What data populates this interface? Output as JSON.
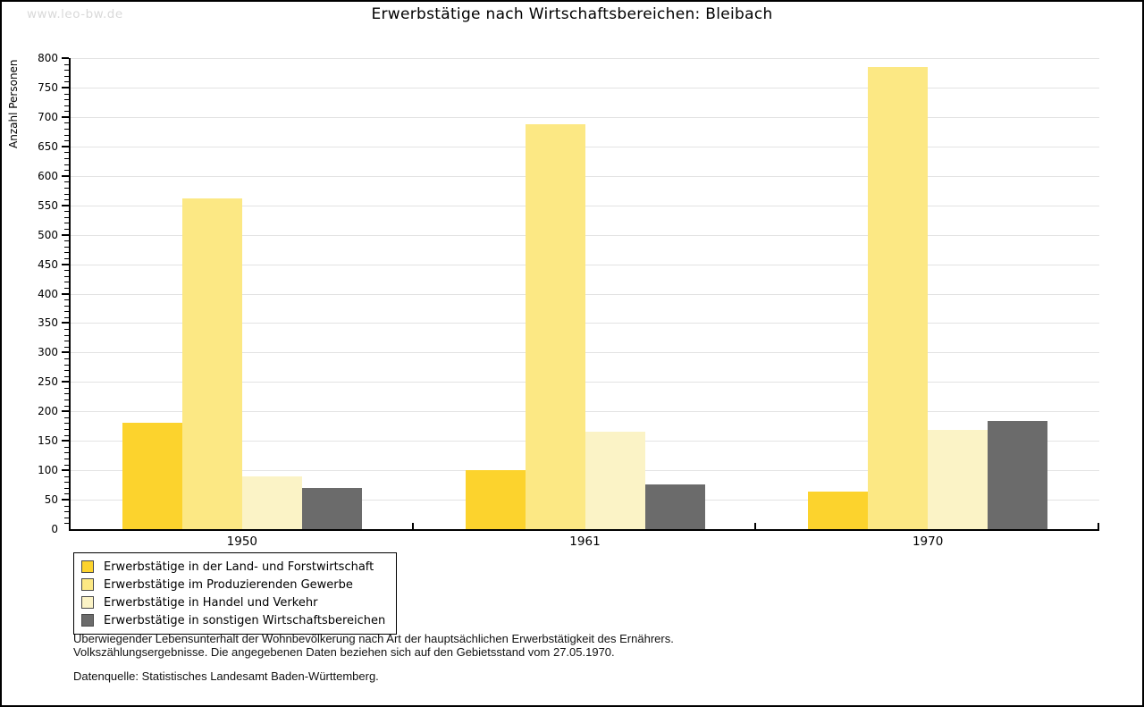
{
  "watermark": "www.leo-bw.de",
  "chart_data": {
    "type": "bar",
    "title": "Erwerbstätige nach Wirtschaftsbereichen: Bleibach",
    "ylabel": "Anzahl Personen",
    "xlabel": "",
    "ylim": [
      0,
      800
    ],
    "ytick_step": 50,
    "y_minor_step": 10,
    "grid": true,
    "legend_position": "bottom-left",
    "categories": [
      "1950",
      "1961",
      "1970"
    ],
    "series": [
      {
        "name": "Erwerbstätige in der Land- und Forstwirtschaft",
        "color": "#FCD32D",
        "values": [
          180,
          100,
          64
        ]
      },
      {
        "name": "Erwerbstätige im Produzierenden Gewerbe",
        "color": "#FCE884",
        "values": [
          562,
          687,
          785
        ]
      },
      {
        "name": "Erwerbstätige in Handel und Verkehr",
        "color": "#FBF3C6",
        "values": [
          89,
          165,
          168
        ]
      },
      {
        "name": "Erwerbstätige in sonstigen Wirtschaftsbereichen",
        "color": "#6B6B6B",
        "values": [
          70,
          76,
          183
        ]
      }
    ]
  },
  "footer": {
    "line1": "Überwiegender Lebensunterhalt der Wohnbevölkerung nach Art der hauptsächlichen Erwerbstätigkeit des Ernährers.",
    "line2": "Volkszählungsergebnisse. Die angegebenen Daten beziehen sich auf den Gebietsstand vom 27.05.1970.",
    "line3": "Datenquelle: Statistisches Landesamt Baden-Württemberg."
  }
}
